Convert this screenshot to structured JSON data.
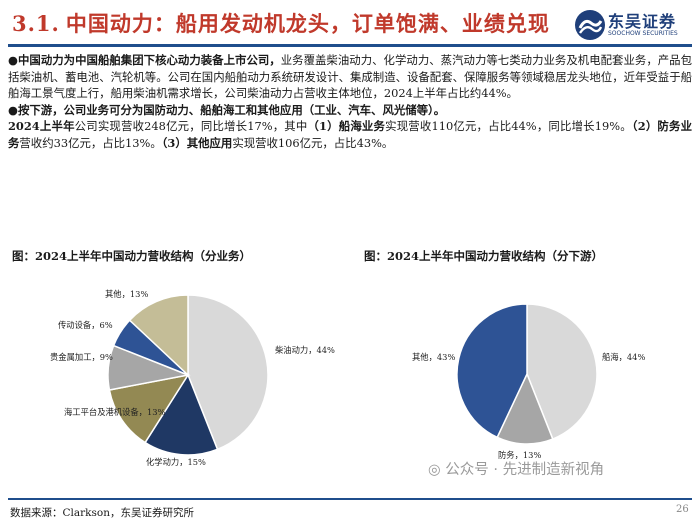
{
  "header": {
    "section_number": "3.1.",
    "title": "中国动力：船用发动机龙头，订单饱满、业绩兑现",
    "logo_cn": "东吴证券",
    "logo_en": "SOOCHOW SECURITIES"
  },
  "body": {
    "p1_bold": "●中国动力为中国船舶集团下核心动力装备上市公司，",
    "p1_rest": "业务覆盖柴油动力、化学动力、蒸汽动力等七类动力业务及机电配套业务，产品包括柴油机、蓄电池、汽轮机等。公司在国内船舶动力系统研发设计、集成制造、设备配套、保障服务等领域稳居龙头地位，近年受益于船舶海工景气度上行，船用柴油机需求增长，公司柴油动力占营收主体地位，2024上半年占比约44%。",
    "p2_bold": "●按下游，公司业务可分为国防动力、船舶海工和其他应用（工业、汽车、风光储等）。",
    "p3_a": "2024上半年",
    "p3_b": "公司实现营收248亿元，同比增长17%，其中",
    "p3_c": "（1）船海业务",
    "p3_d": "实现营收110亿元，占比44%，同比增长19%。",
    "p3_e": "（2）防务业务",
    "p3_f": "营收约33亿元，占比13%。",
    "p3_g": "（3）其他应用",
    "p3_h": "实现营收106亿元，占比43%。"
  },
  "chart_data": [
    {
      "type": "pie",
      "title": "图：2024上半年中国动力营收结构（分业务）",
      "slices": [
        {
          "name": "柴油动力",
          "value": 44,
          "label": "柴油动力，44%",
          "color": "#d9d9d9"
        },
        {
          "name": "化学动力",
          "value": 15,
          "label": "化学动力，15%",
          "color": "#1f3864"
        },
        {
          "name": "海工平台及港机设备",
          "value": 13,
          "label": "海工平台及港机设备，13%",
          "color": "#938953"
        },
        {
          "name": "贵金属加工",
          "value": 9,
          "label": "贵金属加工，9%",
          "color": "#a6a6a6"
        },
        {
          "name": "传动设备",
          "value": 6,
          "label": "传动设备，6%",
          "color": "#2e5395"
        },
        {
          "name": "其他",
          "value": 13,
          "label": "其他，13%",
          "color": "#c4bd97"
        }
      ]
    },
    {
      "type": "pie",
      "title": "图：2024上半年中国动力营收结构（分下游）",
      "slices": [
        {
          "name": "船海",
          "value": 44,
          "label": "船海，44%",
          "color": "#d9d9d9"
        },
        {
          "name": "防务",
          "value": 13,
          "label": "防务，13%",
          "color": "#a6a6a6"
        },
        {
          "name": "其他",
          "value": 43,
          "label": "其他，43%",
          "color": "#2e5395"
        }
      ]
    }
  ],
  "footer": {
    "source": "数据来源：Clarkson，东吴证券研究所",
    "watermark": "公众号 · 先进制造新视角",
    "page": "26"
  }
}
